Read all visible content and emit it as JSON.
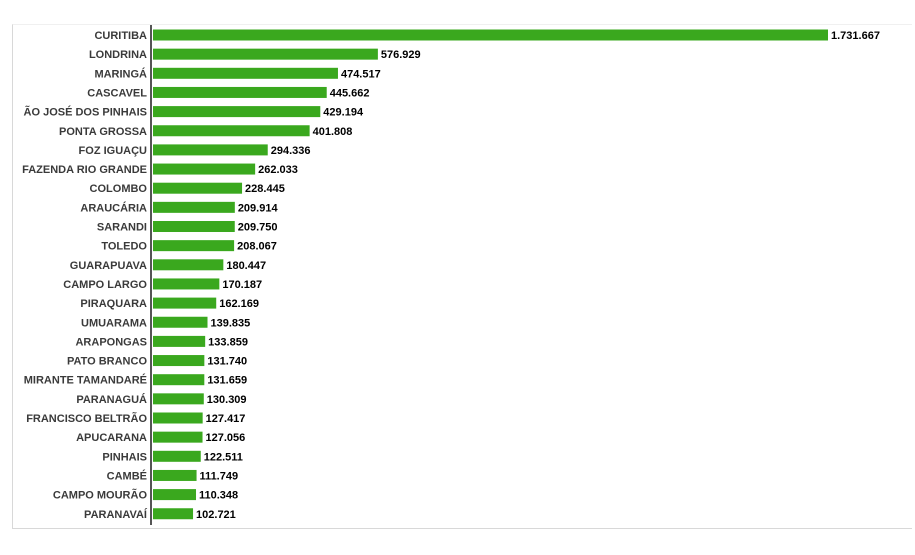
{
  "chart_data": {
    "type": "bar",
    "orientation": "horizontal",
    "categories": [
      "CURITIBA",
      "LONDRINA",
      "MARINGÁ",
      "CASCAVEL",
      "ÃO JOSÉ DOS PINHAIS",
      "PONTA GROSSA",
      "FOZ IGUAÇU",
      "FAZENDA RIO GRANDE",
      "COLOMBO",
      "ARAUCÁRIA",
      "SARANDI",
      "TOLEDO",
      "GUARAPUAVA",
      "CAMPO LARGO",
      "PIRAQUARA",
      "UMUARAMA",
      "ARAPONGAS",
      "PATO BRANCO",
      "MIRANTE TAMANDARÉ",
      "PARANAGUÁ",
      "FRANCISCO BELTRÃO",
      "APUCARANA",
      "PINHAIS",
      "CAMBÉ",
      "CAMPO MOURÃO",
      "PARANAVAÍ"
    ],
    "values": [
      1731667,
      576929,
      474517,
      445662,
      429194,
      401808,
      294336,
      262033,
      228445,
      209914,
      209750,
      208067,
      180447,
      170187,
      162169,
      139835,
      133859,
      131740,
      131659,
      130309,
      127417,
      127056,
      122511,
      111749,
      110348,
      102721
    ],
    "value_labels": [
      "1.731.667",
      "576.929",
      "474.517",
      "445.662",
      "429.194",
      "401.808",
      "294.336",
      "262.033",
      "228.445",
      "209.914",
      "209.750",
      "208.067",
      "180.447",
      "170.187",
      "162.169",
      "139.835",
      "133.859",
      "131.740",
      "131.659",
      "130.309",
      "127.417",
      "127.056",
      "122.511",
      "111.749",
      "110.348",
      "102.721"
    ],
    "xlim": [
      0,
      1731667
    ],
    "bar_color": "#3aa81e",
    "axis_color": "#555555",
    "grid": false,
    "legend": "none"
  }
}
